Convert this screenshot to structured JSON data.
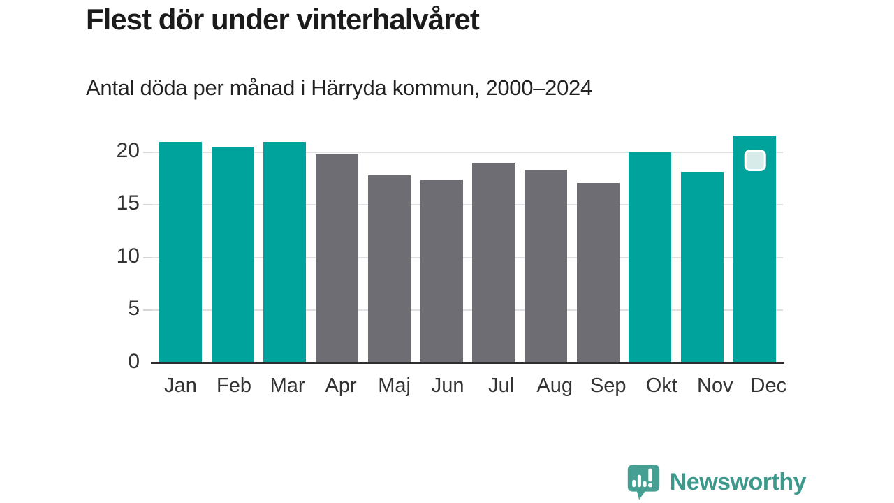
{
  "header": {
    "title": "Flest dör under vinterhalvåret",
    "subtitle": "Antal döda per månad i Härryda kommun, 2000–2024"
  },
  "chart_data": {
    "type": "bar",
    "title": "Flest dör under vinterhalvåret",
    "subtitle": "Antal döda per månad i Härryda kommun, 2000–2024",
    "categories": [
      "Jan",
      "Feb",
      "Mar",
      "Apr",
      "Maj",
      "Jun",
      "Jul",
      "Aug",
      "Sep",
      "Okt",
      "Nov",
      "Dec"
    ],
    "values": [
      21.0,
      20.5,
      21.0,
      19.8,
      17.8,
      17.4,
      19.0,
      18.3,
      17.1,
      20.0,
      18.1,
      21.6
    ],
    "bar_season": [
      "winter",
      "winter",
      "winter",
      "summer",
      "summer",
      "summer",
      "summer",
      "summer",
      "summer",
      "winter",
      "winter",
      "winter"
    ],
    "yticks": [
      0,
      5,
      10,
      15,
      20
    ],
    "ylim": [
      0,
      22.1
    ],
    "xlabel": "",
    "ylabel": "",
    "grid": "horizontal",
    "legend": "none",
    "highlighted_category": "Dec"
  },
  "colors": {
    "winter": "#00a39b",
    "summer": "#6e6d73",
    "badge_fill": "#d7ebe8",
    "badge_border": "#ffffff",
    "logo": "#3d998c"
  },
  "footer": {
    "brand": "Newsworthy"
  }
}
